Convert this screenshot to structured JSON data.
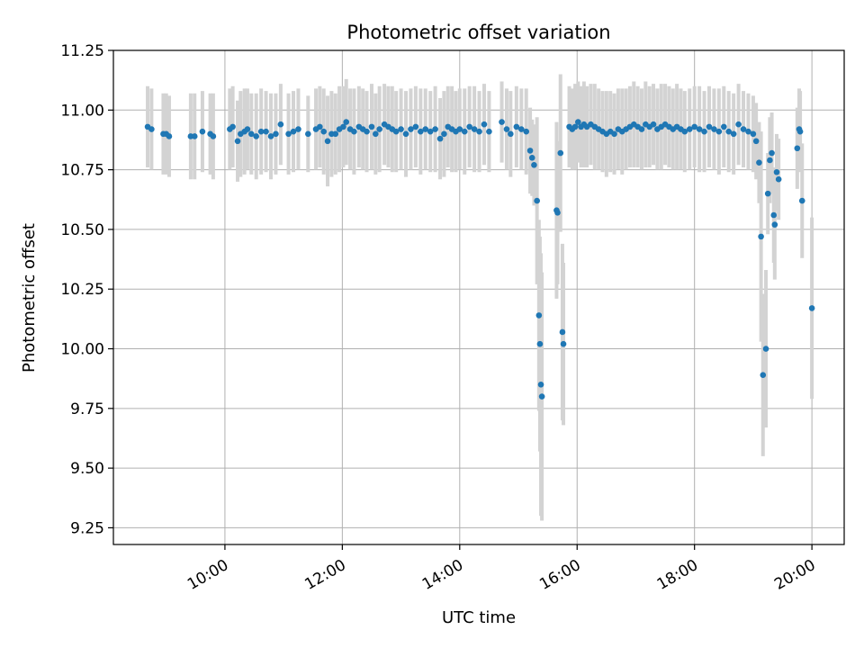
{
  "chart_data": {
    "type": "scatter",
    "title": "Photometric offset variation",
    "xlabel": "UTC time",
    "ylabel": "Photometric offset",
    "xlim": [
      "08:06",
      "20:33"
    ],
    "ylim": [
      9.18,
      11.25
    ],
    "x_ticks": [
      "10:00",
      "12:00",
      "14:00",
      "16:00",
      "18:00",
      "20:00"
    ],
    "y_ticks": [
      "9.25",
      "9.50",
      "9.75",
      "10.00",
      "10.25",
      "10.50",
      "10.75",
      "11.00",
      "11.25"
    ],
    "grid": true,
    "colors": {
      "points": "#1f77b4",
      "error_bars": "#d3d3d3",
      "grid": "#b0b0b0"
    },
    "series": [
      {
        "points": [
          {
            "t": "08:41",
            "y": 10.93,
            "err": 0.17
          },
          {
            "t": "08:45",
            "y": 10.92,
            "err": 0.17
          },
          {
            "t": "08:57",
            "y": 10.9,
            "err": 0.17
          },
          {
            "t": "09:00",
            "y": 10.9,
            "err": 0.17
          },
          {
            "t": "09:03",
            "y": 10.89,
            "err": 0.17
          },
          {
            "t": "09:25",
            "y": 10.89,
            "err": 0.18
          },
          {
            "t": "09:29",
            "y": 10.89,
            "err": 0.18
          },
          {
            "t": "09:37",
            "y": 10.91,
            "err": 0.17
          },
          {
            "t": "09:45",
            "y": 10.9,
            "err": 0.17
          },
          {
            "t": "09:48",
            "y": 10.89,
            "err": 0.18
          },
          {
            "t": "10:05",
            "y": 10.92,
            "err": 0.17
          },
          {
            "t": "10:08",
            "y": 10.93,
            "err": 0.17
          },
          {
            "t": "10:13",
            "y": 10.87,
            "err": 0.17
          },
          {
            "t": "10:16",
            "y": 10.9,
            "err": 0.18
          },
          {
            "t": "10:20",
            "y": 10.91,
            "err": 0.18
          },
          {
            "t": "10:23",
            "y": 10.92,
            "err": 0.17
          },
          {
            "t": "10:27",
            "y": 10.9,
            "err": 0.17
          },
          {
            "t": "10:32",
            "y": 10.89,
            "err": 0.18
          },
          {
            "t": "10:37",
            "y": 10.91,
            "err": 0.18
          },
          {
            "t": "10:42",
            "y": 10.91,
            "err": 0.17
          },
          {
            "t": "10:47",
            "y": 10.89,
            "err": 0.18
          },
          {
            "t": "10:52",
            "y": 10.9,
            "err": 0.17
          },
          {
            "t": "10:57",
            "y": 10.94,
            "err": 0.17
          },
          {
            "t": "11:05",
            "y": 10.9,
            "err": 0.17
          },
          {
            "t": "11:10",
            "y": 10.91,
            "err": 0.17
          },
          {
            "t": "11:15",
            "y": 10.92,
            "err": 0.17
          },
          {
            "t": "11:25",
            "y": 10.9,
            "err": 0.16
          },
          {
            "t": "11:33",
            "y": 10.92,
            "err": 0.17
          },
          {
            "t": "11:37",
            "y": 10.93,
            "err": 0.17
          },
          {
            "t": "11:41",
            "y": 10.91,
            "err": 0.18
          },
          {
            "t": "11:45",
            "y": 10.87,
            "err": 0.19
          },
          {
            "t": "11:49",
            "y": 10.9,
            "err": 0.18
          },
          {
            "t": "11:53",
            "y": 10.9,
            "err": 0.17
          },
          {
            "t": "11:57",
            "y": 10.92,
            "err": 0.18
          },
          {
            "t": "12:01",
            "y": 10.93,
            "err": 0.17
          },
          {
            "t": "12:04",
            "y": 10.95,
            "err": 0.18
          },
          {
            "t": "12:08",
            "y": 10.92,
            "err": 0.17
          },
          {
            "t": "12:12",
            "y": 10.91,
            "err": 0.18
          },
          {
            "t": "12:17",
            "y": 10.93,
            "err": 0.17
          },
          {
            "t": "12:21",
            "y": 10.92,
            "err": 0.17
          },
          {
            "t": "12:25",
            "y": 10.91,
            "err": 0.17
          },
          {
            "t": "12:30",
            "y": 10.93,
            "err": 0.18
          },
          {
            "t": "12:34",
            "y": 10.9,
            "err": 0.17
          },
          {
            "t": "12:38",
            "y": 10.92,
            "err": 0.18
          },
          {
            "t": "12:43",
            "y": 10.94,
            "err": 0.17
          },
          {
            "t": "12:47",
            "y": 10.93,
            "err": 0.17
          },
          {
            "t": "12:51",
            "y": 10.92,
            "err": 0.18
          },
          {
            "t": "12:55",
            "y": 10.91,
            "err": 0.17
          },
          {
            "t": "13:00",
            "y": 10.92,
            "err": 0.17
          },
          {
            "t": "13:05",
            "y": 10.9,
            "err": 0.18
          },
          {
            "t": "13:10",
            "y": 10.92,
            "err": 0.17
          },
          {
            "t": "13:15",
            "y": 10.93,
            "err": 0.17
          },
          {
            "t": "13:20",
            "y": 10.91,
            "err": 0.18
          },
          {
            "t": "13:25",
            "y": 10.92,
            "err": 0.17
          },
          {
            "t": "13:30",
            "y": 10.91,
            "err": 0.17
          },
          {
            "t": "13:35",
            "y": 10.92,
            "err": 0.18
          },
          {
            "t": "13:40",
            "y": 10.88,
            "err": 0.17
          },
          {
            "t": "13:44",
            "y": 10.9,
            "err": 0.18
          },
          {
            "t": "13:48",
            "y": 10.93,
            "err": 0.17
          },
          {
            "t": "13:52",
            "y": 10.92,
            "err": 0.18
          },
          {
            "t": "13:56",
            "y": 10.91,
            "err": 0.17
          },
          {
            "t": "14:00",
            "y": 10.92,
            "err": 0.17
          },
          {
            "t": "14:05",
            "y": 10.91,
            "err": 0.18
          },
          {
            "t": "14:10",
            "y": 10.93,
            "err": 0.17
          },
          {
            "t": "14:15",
            "y": 10.92,
            "err": 0.18
          },
          {
            "t": "14:20",
            "y": 10.91,
            "err": 0.17
          },
          {
            "t": "14:25",
            "y": 10.94,
            "err": 0.17
          },
          {
            "t": "14:30",
            "y": 10.91,
            "err": 0.17
          },
          {
            "t": "14:43",
            "y": 10.95,
            "err": 0.17
          },
          {
            "t": "14:48",
            "y": 10.92,
            "err": 0.17
          },
          {
            "t": "14:52",
            "y": 10.9,
            "err": 0.18
          },
          {
            "t": "14:58",
            "y": 10.93,
            "err": 0.17
          },
          {
            "t": "15:03",
            "y": 10.92,
            "err": 0.17
          },
          {
            "t": "15:08",
            "y": 10.91,
            "err": 0.18
          },
          {
            "t": "15:12",
            "y": 10.83,
            "err": 0.18
          },
          {
            "t": "15:14",
            "y": 10.8,
            "err": 0.16
          },
          {
            "t": "15:16",
            "y": 10.77,
            "err": 0.17
          },
          {
            "t": "15:19",
            "y": 10.62,
            "err": 0.35
          },
          {
            "t": "15:21",
            "y": 10.14,
            "err": 0.4
          },
          {
            "t": "15:22",
            "y": 10.02,
            "err": 0.45
          },
          {
            "t": "15:23",
            "y": 9.85,
            "err": 0.55
          },
          {
            "t": "15:24",
            "y": 9.8,
            "err": 0.52
          },
          {
            "t": "15:39",
            "y": 10.58,
            "err": 0.37
          },
          {
            "t": "15:40",
            "y": 10.57,
            "err": 0.3
          },
          {
            "t": "15:43",
            "y": 10.82,
            "err": 0.33
          },
          {
            "t": "15:45",
            "y": 10.07,
            "err": 0.37
          },
          {
            "t": "15:46",
            "y": 10.02,
            "err": 0.34
          },
          {
            "t": "15:52",
            "y": 10.93,
            "err": 0.17
          },
          {
            "t": "15:55",
            "y": 10.92,
            "err": 0.17
          },
          {
            "t": "15:58",
            "y": 10.93,
            "err": 0.18
          },
          {
            "t": "16:01",
            "y": 10.95,
            "err": 0.17
          },
          {
            "t": "16:04",
            "y": 10.93,
            "err": 0.17
          },
          {
            "t": "16:07",
            "y": 10.94,
            "err": 0.18
          },
          {
            "t": "16:10",
            "y": 10.93,
            "err": 0.17
          },
          {
            "t": "16:14",
            "y": 10.94,
            "err": 0.17
          },
          {
            "t": "16:18",
            "y": 10.93,
            "err": 0.18
          },
          {
            "t": "16:22",
            "y": 10.92,
            "err": 0.17
          },
          {
            "t": "16:26",
            "y": 10.91,
            "err": 0.17
          },
          {
            "t": "16:30",
            "y": 10.9,
            "err": 0.18
          },
          {
            "t": "16:34",
            "y": 10.91,
            "err": 0.17
          },
          {
            "t": "16:38",
            "y": 10.9,
            "err": 0.17
          },
          {
            "t": "16:42",
            "y": 10.92,
            "err": 0.17
          },
          {
            "t": "16:46",
            "y": 10.91,
            "err": 0.18
          },
          {
            "t": "16:50",
            "y": 10.92,
            "err": 0.17
          },
          {
            "t": "16:54",
            "y": 10.93,
            "err": 0.17
          },
          {
            "t": "16:58",
            "y": 10.94,
            "err": 0.18
          },
          {
            "t": "17:02",
            "y": 10.93,
            "err": 0.17
          },
          {
            "t": "17:06",
            "y": 10.92,
            "err": 0.17
          },
          {
            "t": "17:10",
            "y": 10.94,
            "err": 0.18
          },
          {
            "t": "17:14",
            "y": 10.93,
            "err": 0.17
          },
          {
            "t": "17:18",
            "y": 10.94,
            "err": 0.17
          },
          {
            "t": "17:22",
            "y": 10.92,
            "err": 0.17
          },
          {
            "t": "17:26",
            "y": 10.93,
            "err": 0.18
          },
          {
            "t": "17:30",
            "y": 10.94,
            "err": 0.17
          },
          {
            "t": "17:34",
            "y": 10.93,
            "err": 0.17
          },
          {
            "t": "17:38",
            "y": 10.92,
            "err": 0.17
          },
          {
            "t": "17:42",
            "y": 10.93,
            "err": 0.18
          },
          {
            "t": "17:46",
            "y": 10.92,
            "err": 0.17
          },
          {
            "t": "17:50",
            "y": 10.91,
            "err": 0.17
          },
          {
            "t": "17:55",
            "y": 10.92,
            "err": 0.17
          },
          {
            "t": "18:00",
            "y": 10.93,
            "err": 0.17
          },
          {
            "t": "18:05",
            "y": 10.92,
            "err": 0.18
          },
          {
            "t": "18:10",
            "y": 10.91,
            "err": 0.17
          },
          {
            "t": "18:15",
            "y": 10.93,
            "err": 0.17
          },
          {
            "t": "18:20",
            "y": 10.92,
            "err": 0.17
          },
          {
            "t": "18:25",
            "y": 10.91,
            "err": 0.18
          },
          {
            "t": "18:30",
            "y": 10.93,
            "err": 0.17
          },
          {
            "t": "18:35",
            "y": 10.91,
            "err": 0.17
          },
          {
            "t": "18:40",
            "y": 10.9,
            "err": 0.17
          },
          {
            "t": "18:45",
            "y": 10.94,
            "err": 0.17
          },
          {
            "t": "18:50",
            "y": 10.92,
            "err": 0.16
          },
          {
            "t": "18:55",
            "y": 10.91,
            "err": 0.16
          },
          {
            "t": "19:00",
            "y": 10.9,
            "err": 0.16
          },
          {
            "t": "19:03",
            "y": 10.87,
            "err": 0.16
          },
          {
            "t": "19:06",
            "y": 10.78,
            "err": 0.17
          },
          {
            "t": "19:08",
            "y": 10.47,
            "err": 0.44
          },
          {
            "t": "19:10",
            "y": 9.89,
            "err": 0.34
          },
          {
            "t": "19:13",
            "y": 10.0,
            "err": 0.33
          },
          {
            "t": "19:15",
            "y": 10.65,
            "err": 0.17
          },
          {
            "t": "19:17",
            "y": 10.79,
            "err": 0.18
          },
          {
            "t": "19:19",
            "y": 10.82,
            "err": 0.17
          },
          {
            "t": "19:21",
            "y": 10.56,
            "err": 0.2
          },
          {
            "t": "19:22",
            "y": 10.52,
            "err": 0.23
          },
          {
            "t": "19:24",
            "y": 10.74,
            "err": 0.16
          },
          {
            "t": "19:26",
            "y": 10.71,
            "err": 0.17
          },
          {
            "t": "19:45",
            "y": 10.84,
            "err": 0.17
          },
          {
            "t": "19:47",
            "y": 10.92,
            "err": 0.17
          },
          {
            "t": "19:48",
            "y": 10.91,
            "err": 0.17
          },
          {
            "t": "19:50",
            "y": 10.62,
            "err": 0.24
          },
          {
            "t": "20:00",
            "y": 10.17,
            "err": 0.38
          }
        ]
      }
    ]
  }
}
